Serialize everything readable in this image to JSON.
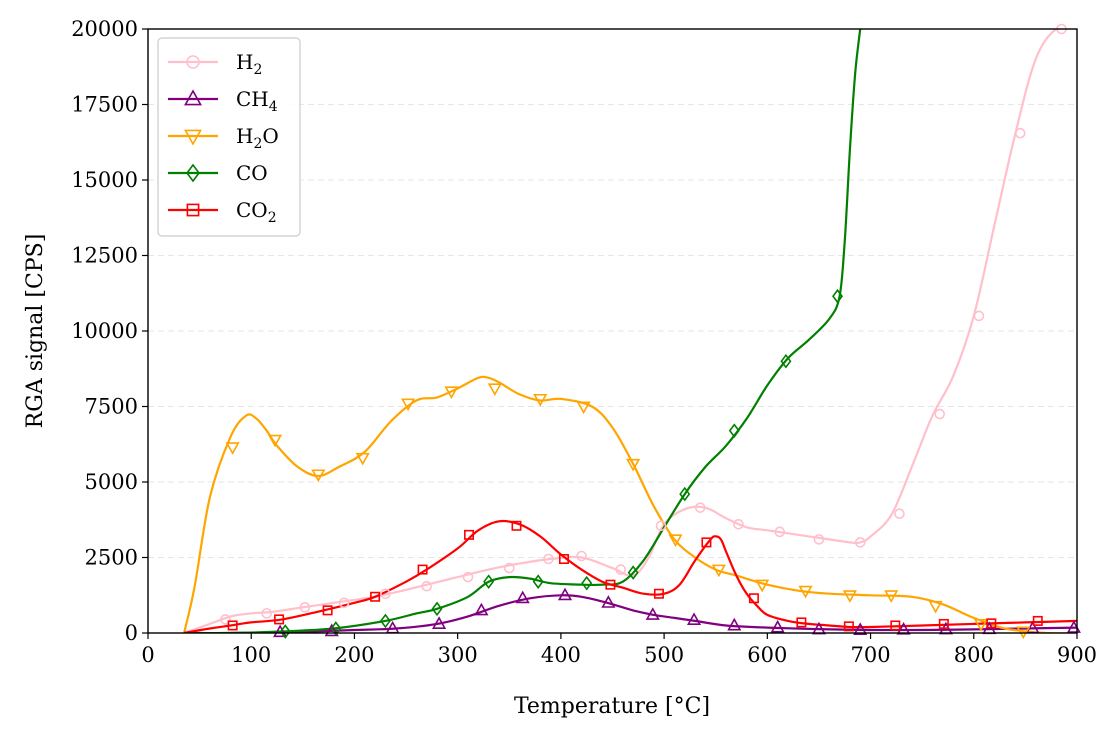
{
  "chart_data": {
    "type": "line",
    "title": "",
    "xlabel": "Temperature [°C]",
    "ylabel": "RGA signal [CPS]",
    "xlim": [
      0,
      900
    ],
    "ylim": [
      0,
      20000
    ],
    "xticks": [
      0,
      100,
      200,
      300,
      400,
      500,
      600,
      700,
      800,
      900
    ],
    "yticks": [
      0,
      2500,
      5000,
      7500,
      10000,
      12500,
      15000,
      17500,
      20000
    ],
    "grid": "horizontal dashed",
    "legend_position": "top-left",
    "series": [
      {
        "name": "H2",
        "label_main": "H",
        "label_sub": "2",
        "label_tail": "",
        "color": "#ffc0cb",
        "marker": "circle",
        "x": [
          35,
          60,
          80,
          100,
          120,
          150,
          180,
          210,
          240,
          270,
          300,
          330,
          360,
          390,
          420,
          450,
          470,
          485,
          500,
          520,
          540,
          560,
          580,
          600,
          620,
          650,
          680,
          690,
          700,
          720,
          740,
          760,
          780,
          800,
          820,
          840,
          860,
          880,
          900
        ],
        "y": [
          0,
          300,
          550,
          650,
          700,
          850,
          1000,
          1150,
          1350,
          1600,
          1850,
          2100,
          2300,
          2450,
          2500,
          2150,
          1900,
          2500,
          3600,
          4100,
          4150,
          3800,
          3500,
          3400,
          3300,
          3150,
          3000,
          3000,
          3200,
          3900,
          5500,
          7200,
          8500,
          10500,
          13500,
          16500,
          19000,
          20000,
          20000
        ],
        "marker_x": [
          75,
          115,
          152,
          190,
          230,
          270,
          310,
          350,
          388,
          420,
          458,
          497,
          535,
          572,
          612,
          650,
          690,
          728,
          767,
          805,
          845,
          885
        ],
        "marker_y": [
          450,
          650,
          850,
          1000,
          1300,
          1550,
          1850,
          2150,
          2450,
          2550,
          2100,
          3550,
          4150,
          3600,
          3350,
          3100,
          3000,
          3950,
          7250,
          10500,
          16550,
          20000
        ]
      },
      {
        "name": "CH4",
        "label_main": "CH",
        "label_sub": "4",
        "label_tail": "",
        "color": "#800080",
        "marker": "triangle-up",
        "x": [
          35,
          80,
          120,
          160,
          200,
          240,
          280,
          310,
          340,
          370,
          400,
          420,
          445,
          470,
          490,
          510,
          530,
          560,
          600,
          650,
          700,
          750,
          800,
          850,
          900
        ],
        "y": [
          0,
          0,
          20,
          50,
          100,
          150,
          300,
          550,
          900,
          1150,
          1250,
          1200,
          1000,
          750,
          600,
          500,
          400,
          250,
          180,
          130,
          100,
          100,
          120,
          150,
          180
        ],
        "marker_x": [
          128,
          178,
          237,
          282,
          323,
          363,
          404,
          446,
          489,
          529,
          568,
          610,
          650,
          690,
          732,
          773,
          815,
          857,
          897
        ],
        "marker_y": [
          30,
          60,
          150,
          300,
          750,
          1150,
          1250,
          1000,
          600,
          430,
          250,
          180,
          120,
          100,
          110,
          120,
          130,
          150,
          170
        ]
      },
      {
        "name": "H2O",
        "label_main": "H",
        "label_sub": "2",
        "label_tail": "O",
        "color": "#ffa500",
        "marker": "triangle-down",
        "x": [
          35,
          45,
          60,
          80,
          95,
          105,
          115,
          125,
          145,
          165,
          185,
          210,
          235,
          260,
          280,
          300,
          320,
          330,
          340,
          360,
          380,
          400,
          430,
          450,
          470,
          490,
          510,
          530,
          550,
          570,
          600,
          630,
          660,
          700,
          740,
          770,
          800,
          830,
          870,
          900
        ],
        "y": [
          0,
          1500,
          4500,
          6500,
          7200,
          7100,
          6700,
          6200,
          5500,
          5200,
          5500,
          6000,
          7000,
          7700,
          7800,
          8100,
          8450,
          8450,
          8300,
          7900,
          7700,
          7750,
          7500,
          6800,
          5600,
          4200,
          3100,
          2500,
          2100,
          1900,
          1600,
          1400,
          1300,
          1250,
          1200,
          950,
          500,
          150,
          0,
          0
        ],
        "marker_x": [
          82,
          123,
          165,
          208,
          252,
          294,
          336,
          380,
          422,
          470,
          511,
          553,
          595,
          637,
          680,
          720,
          763,
          807,
          848
        ],
        "marker_y": [
          6150,
          6400,
          5250,
          5800,
          7600,
          8000,
          8100,
          7750,
          7500,
          5600,
          3100,
          2100,
          1600,
          1400,
          1250,
          1250,
          900,
          300,
          50
        ]
      },
      {
        "name": "CO",
        "label_main": "CO",
        "label_sub": "",
        "label_tail": "",
        "color": "#008000",
        "marker": "diamond",
        "x": [
          35,
          80,
          130,
          180,
          230,
          260,
          280,
          310,
          330,
          350,
          370,
          390,
          420,
          440,
          460,
          480,
          500,
          520,
          540,
          560,
          580,
          600,
          620,
          640,
          660,
          670,
          675,
          680,
          685,
          690
        ],
        "y": [
          0,
          0,
          50,
          150,
          400,
          650,
          800,
          1200,
          1700,
          1850,
          1800,
          1650,
          1600,
          1600,
          1700,
          2400,
          3500,
          4600,
          5500,
          6200,
          7100,
          8200,
          9100,
          9700,
          10400,
          11150,
          13000,
          16000,
          18500,
          20000
        ],
        "marker_x": [
          133,
          182,
          230,
          280,
          330,
          378,
          425,
          470,
          520,
          568,
          618,
          668
        ],
        "marker_y": [
          50,
          150,
          400,
          800,
          1700,
          1700,
          1650,
          2000,
          4600,
          6700,
          9000,
          11150
        ]
      },
      {
        "name": "CO2",
        "label_main": "CO",
        "label_sub": "2",
        "label_tail": "",
        "color": "#ff0000",
        "marker": "square",
        "x": [
          35,
          60,
          80,
          100,
          130,
          170,
          200,
          220,
          250,
          270,
          300,
          320,
          340,
          360,
          380,
          400,
          420,
          440,
          460,
          480,
          500,
          515,
          530,
          545,
          550,
          555,
          560,
          570,
          580,
          590,
          600,
          620,
          640,
          660,
          680,
          700,
          750,
          800,
          850,
          900
        ],
        "y": [
          0,
          150,
          250,
          350,
          450,
          750,
          1000,
          1200,
          1700,
          2100,
          2800,
          3400,
          3700,
          3600,
          3200,
          2600,
          2100,
          1700,
          1500,
          1300,
          1300,
          1600,
          2400,
          3100,
          3200,
          3100,
          2700,
          1900,
          1300,
          900,
          600,
          400,
          300,
          250,
          200,
          200,
          250,
          300,
          350,
          400
        ],
        "marker_x": [
          82,
          127,
          174,
          220,
          266,
          311,
          357,
          403,
          448,
          495,
          541,
          587,
          633,
          679,
          724,
          771,
          817,
          862
        ],
        "marker_y": [
          250,
          450,
          750,
          1200,
          2100,
          3250,
          3550,
          2450,
          1600,
          1300,
          3000,
          1150,
          350,
          220,
          250,
          300,
          320,
          400
        ]
      }
    ]
  }
}
